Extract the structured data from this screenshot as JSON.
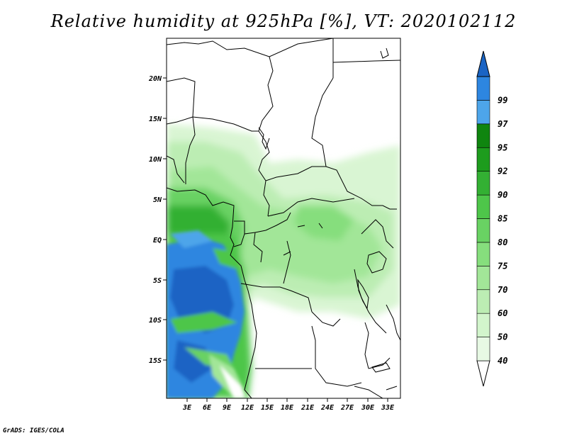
{
  "title": "Relative humidity at 925hPa [%], VT: 2020102112",
  "credit": "GrADS: IGES/COLA",
  "map": {
    "lat_labels": [
      "20N",
      "15N",
      "10N",
      "5N",
      "EQ",
      "5S",
      "10S",
      "15S"
    ],
    "lon_labels": [
      "3E",
      "6E",
      "9E",
      "12E",
      "15E",
      "18E",
      "21E",
      "24E",
      "27E",
      "30E",
      "33E"
    ]
  },
  "colorbar": {
    "levels": [
      "40",
      "50",
      "60",
      "70",
      "75",
      "80",
      "85",
      "90",
      "92",
      "95",
      "97",
      "99"
    ],
    "colors": [
      "#ffffff",
      "#e7f9e4",
      "#d2f5cc",
      "#bcedb3",
      "#a2e698",
      "#86de7d",
      "#69d263",
      "#4ec64a",
      "#33b033",
      "#1d9c1d",
      "#0f850f",
      "#4da5ea",
      "#2d86e0",
      "#1a64c4"
    ]
  }
}
